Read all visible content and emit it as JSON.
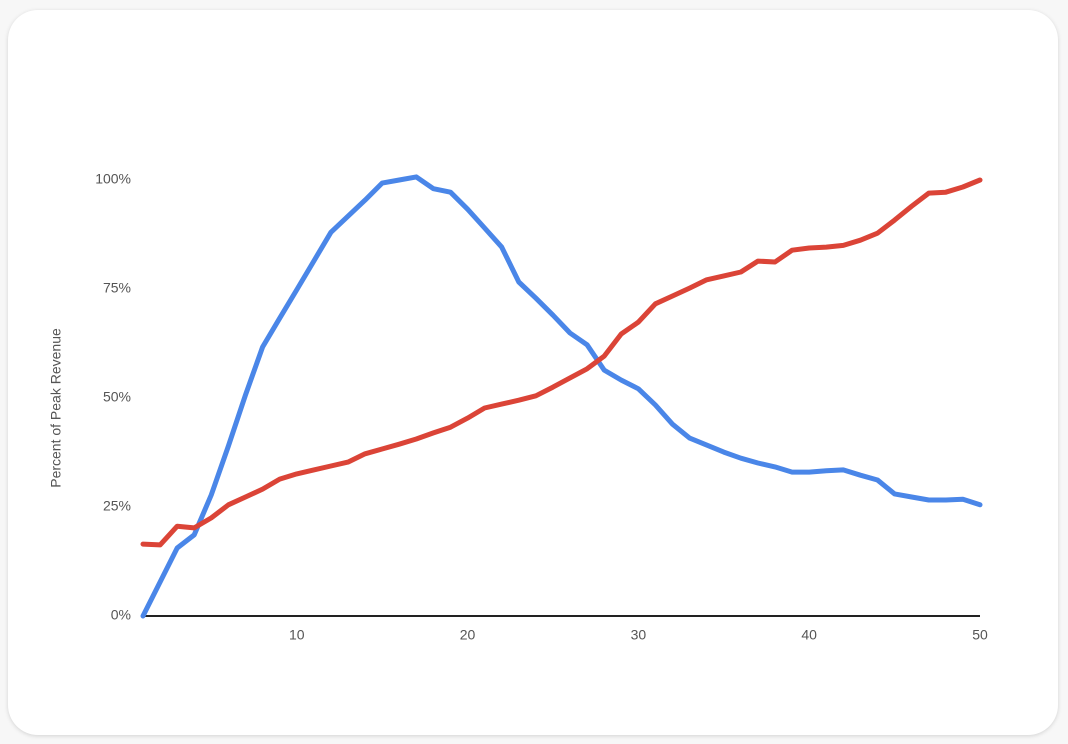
{
  "chart_data": {
    "type": "line",
    "y_label": "Percent of Peak Revenue",
    "x": [
      1,
      2,
      3,
      4,
      5,
      6,
      7,
      8,
      9,
      10,
      11,
      12,
      13,
      14,
      15,
      16,
      17,
      18,
      19,
      20,
      21,
      22,
      23,
      24,
      25,
      26,
      27,
      28,
      29,
      30,
      31,
      32,
      33,
      34,
      35,
      36,
      37,
      38,
      39,
      40,
      41,
      42,
      43,
      44,
      45,
      46,
      47,
      48,
      49,
      50
    ],
    "series": [
      {
        "color": "#4a86e8",
        "values": [
          0,
          7.8,
          15.6,
          18.6,
          27.8,
          39,
          50.7,
          61.7,
          68.3,
          74.8,
          81.4,
          88,
          91.7,
          95.4,
          99.3,
          100,
          100.7,
          98,
          97.2,
          93.3,
          89,
          84.6,
          76.6,
          72.9,
          69,
          64.9,
          62.2,
          56.4,
          54.1,
          52.1,
          48.4,
          44,
          40.8,
          39.2,
          37.6,
          36.2,
          35.1,
          34.2,
          33,
          33,
          33.3,
          33.5,
          32.3,
          31.2,
          28,
          27.3,
          26.6,
          26.6,
          26.8,
          25.5
        ]
      },
      {
        "color": "#db4437",
        "values": [
          16.5,
          16.3,
          20.6,
          20.2,
          22.5,
          25.5,
          27.3,
          29.1,
          31.4,
          32.6,
          33.5,
          34.4,
          35.3,
          37.2,
          38.3,
          39.4,
          40.6,
          42,
          43.3,
          45.4,
          47.7,
          48.6,
          49.5,
          50.5,
          52.5,
          54.6,
          56.7,
          59.6,
          64.7,
          67.4,
          71.6,
          73.4,
          75.2,
          77.1,
          78,
          78.9,
          81.4,
          81.2,
          83.9,
          84.4,
          84.6,
          85,
          86.2,
          87.8,
          90.8,
          94,
          97,
          97.2,
          98.4,
          100
        ]
      }
    ],
    "xlim": [
      1,
      50
    ],
    "xticks": [
      10,
      20,
      30,
      40,
      50
    ],
    "ylim": [
      0,
      100
    ],
    "yticks": [
      {
        "value": 0,
        "label": "0%"
      },
      {
        "value": 25,
        "label": "25%"
      },
      {
        "value": 50,
        "label": "50%"
      },
      {
        "value": 75,
        "label": "75%"
      },
      {
        "value": 100,
        "label": "100%"
      }
    ],
    "grid": false
  }
}
